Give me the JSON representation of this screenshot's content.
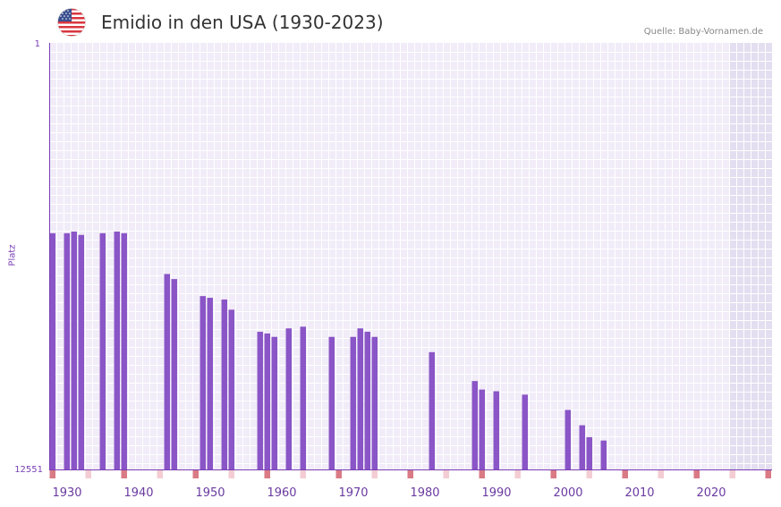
{
  "header": {
    "title": "Emidio in den USA (1930-2023)",
    "source": "Quelle: Baby-Vornamen.de"
  },
  "colors": {
    "bar": "#8a55c6",
    "background": "#f1ecf8",
    "future": "#e3def0",
    "axis": "#7a3fb5",
    "decade_marker": "#d97a85",
    "half_decade_marker": "#f3cdd3",
    "tick_text": "#6a3aa0"
  },
  "chart_data": {
    "type": "bar",
    "title": "Emidio in den USA (1930-2023)",
    "xlabel": "",
    "ylabel": "Platz",
    "y_axis_reversed": true,
    "ylim": [
      1,
      12551
    ],
    "y_tick_labels": [
      "1",
      "12551"
    ],
    "x_range": [
      1928,
      2029
    ],
    "x_tick_labels": [
      "1930",
      "1940",
      "1950",
      "1960",
      "1970",
      "1980",
      "1990",
      "2000",
      "2010",
      "2020"
    ],
    "x_tick_values": [
      1930,
      1940,
      1950,
      1960,
      1970,
      1980,
      1990,
      2000,
      2010,
      2020
    ],
    "shaded_future_from": 2023,
    "series": [
      {
        "name": "Platz",
        "x": [
          1928,
          1930,
          1931,
          1932,
          1935,
          1937,
          1938,
          1944,
          1945,
          1949,
          1950,
          1952,
          1953,
          1957,
          1958,
          1959,
          1961,
          1963,
          1967,
          1970,
          1971,
          1972,
          1973,
          1981,
          1987,
          1988,
          1990,
          1994,
          2000,
          2002,
          2003,
          2005
        ],
        "values": [
          5600,
          5600,
          5550,
          5650,
          5600,
          5550,
          5600,
          6800,
          6950,
          7450,
          7500,
          7550,
          7850,
          8500,
          8550,
          8650,
          8400,
          8350,
          8650,
          8650,
          8400,
          8500,
          8650,
          9100,
          9950,
          10200,
          10250,
          10350,
          10800,
          11250,
          11600,
          11700
        ]
      }
    ]
  }
}
